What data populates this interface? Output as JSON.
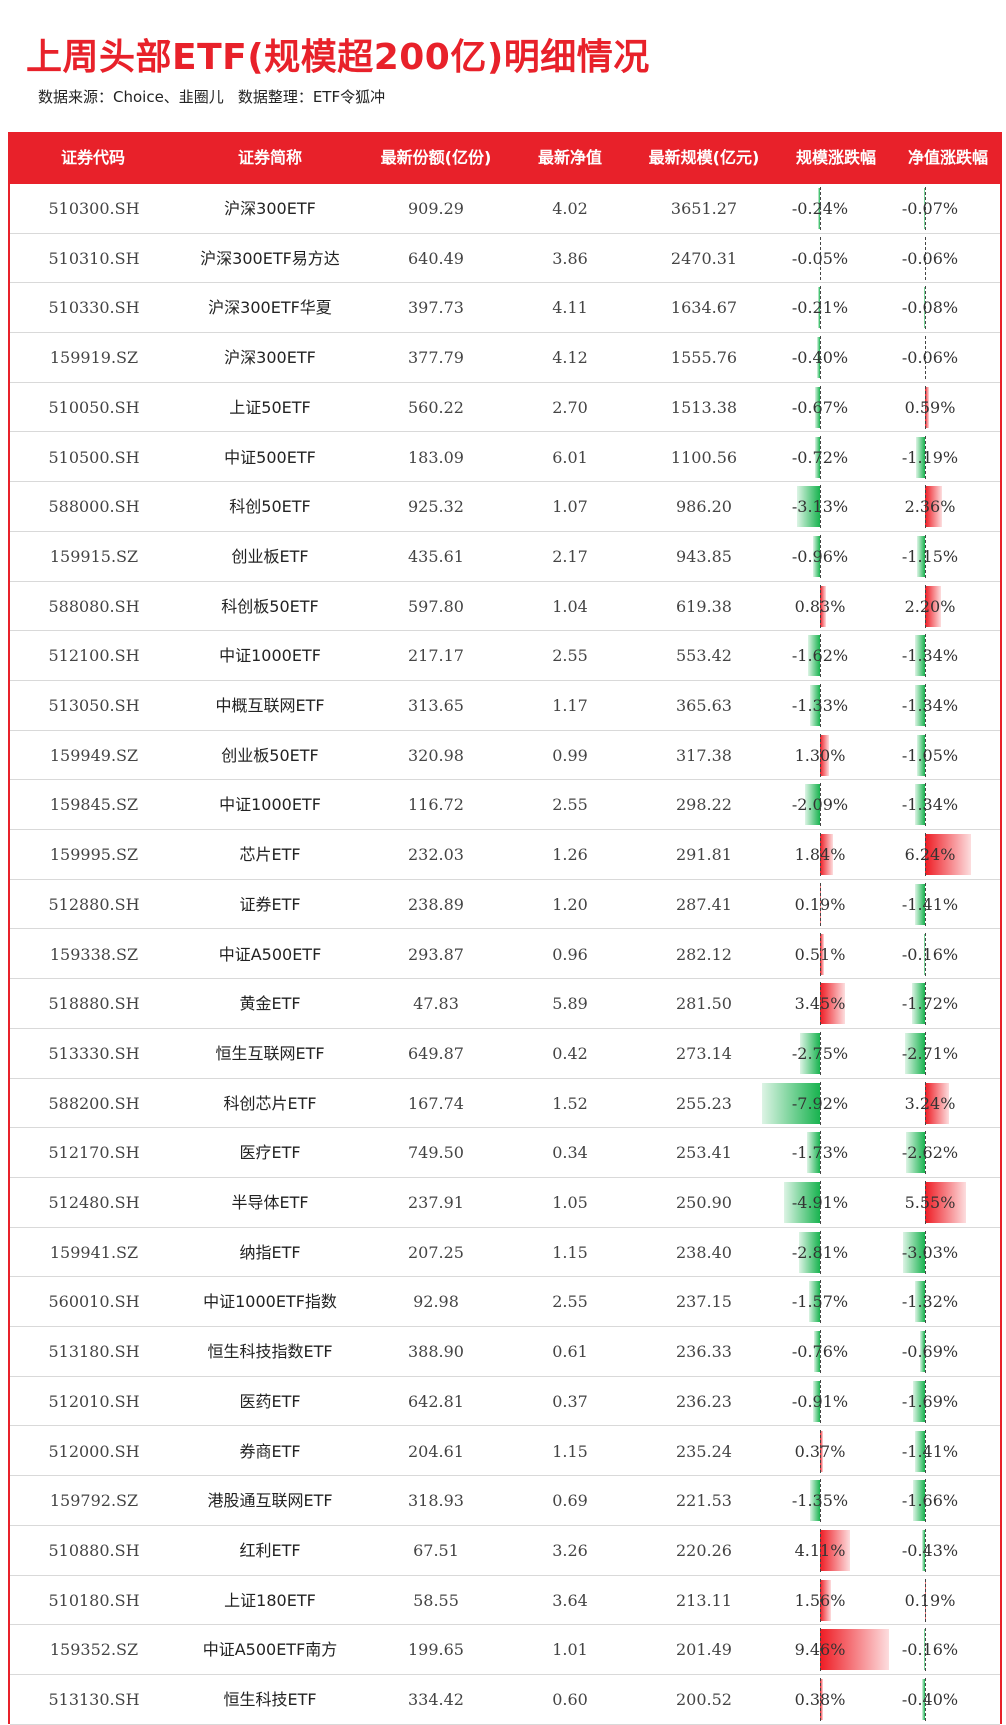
{
  "title": "上周头部ETF(规模超200亿)明细情况",
  "source_line": {
    "source": "数据来源：Choice、韭圈儿",
    "editor": "数据整理：ETF令狐冲"
  },
  "colors": {
    "accent": "#e8212a",
    "up": "#ee1c24",
    "down": "#18b34f"
  },
  "table": {
    "headers": [
      "证券代码",
      "证券简称",
      "最新份额(亿份)",
      "最新净值",
      "最新规模(亿元)",
      "规模涨跌幅",
      "净值涨跌幅"
    ],
    "rows": [
      {
        "code": "510300.SH",
        "name": "沪深300ETF",
        "shares": "909.29",
        "nav": "4.02",
        "scale": "3651.27",
        "scale_chg": "-0.24%",
        "scale_val": -0.24,
        "nav_chg": "-0.07%",
        "nav_val": -0.07
      },
      {
        "code": "510310.SH",
        "name": "沪深300ETF易方达",
        "shares": "640.49",
        "nav": "3.86",
        "scale": "2470.31",
        "scale_chg": "-0.05%",
        "scale_val": -0.05,
        "nav_chg": "-0.06%",
        "nav_val": -0.06
      },
      {
        "code": "510330.SH",
        "name": "沪深300ETF华夏",
        "shares": "397.73",
        "nav": "4.11",
        "scale": "1634.67",
        "scale_chg": "-0.21%",
        "scale_val": -0.21,
        "nav_chg": "-0.08%",
        "nav_val": -0.08
      },
      {
        "code": "159919.SZ",
        "name": "沪深300ETF",
        "shares": "377.79",
        "nav": "4.12",
        "scale": "1555.76",
        "scale_chg": "-0.40%",
        "scale_val": -0.4,
        "nav_chg": "-0.06%",
        "nav_val": -0.06
      },
      {
        "code": "510050.SH",
        "name": "上证50ETF",
        "shares": "560.22",
        "nav": "2.70",
        "scale": "1513.38",
        "scale_chg": "-0.67%",
        "scale_val": -0.67,
        "nav_chg": "0.59%",
        "nav_val": 0.59
      },
      {
        "code": "510500.SH",
        "name": "中证500ETF",
        "shares": "183.09",
        "nav": "6.01",
        "scale": "1100.56",
        "scale_chg": "-0.72%",
        "scale_val": -0.72,
        "nav_chg": "-1.19%",
        "nav_val": -1.19
      },
      {
        "code": "588000.SH",
        "name": "科创50ETF",
        "shares": "925.32",
        "nav": "1.07",
        "scale": "986.20",
        "scale_chg": "-3.13%",
        "scale_val": -3.13,
        "nav_chg": "2.36%",
        "nav_val": 2.36
      },
      {
        "code": "159915.SZ",
        "name": "创业板ETF",
        "shares": "435.61",
        "nav": "2.17",
        "scale": "943.85",
        "scale_chg": "-0.96%",
        "scale_val": -0.96,
        "nav_chg": "-1.15%",
        "nav_val": -1.15
      },
      {
        "code": "588080.SH",
        "name": "科创板50ETF",
        "shares": "597.80",
        "nav": "1.04",
        "scale": "619.38",
        "scale_chg": "0.83%",
        "scale_val": 0.83,
        "nav_chg": "2.20%",
        "nav_val": 2.2
      },
      {
        "code": "512100.SH",
        "name": "中证1000ETF",
        "shares": "217.17",
        "nav": "2.55",
        "scale": "553.42",
        "scale_chg": "-1.62%",
        "scale_val": -1.62,
        "nav_chg": "-1.34%",
        "nav_val": -1.34
      },
      {
        "code": "513050.SH",
        "name": "中概互联网ETF",
        "shares": "313.65",
        "nav": "1.17",
        "scale": "365.63",
        "scale_chg": "-1.33%",
        "scale_val": -1.33,
        "nav_chg": "-1.34%",
        "nav_val": -1.34
      },
      {
        "code": "159949.SZ",
        "name": "创业板50ETF",
        "shares": "320.98",
        "nav": "0.99",
        "scale": "317.38",
        "scale_chg": "1.30%",
        "scale_val": 1.3,
        "nav_chg": "-1.05%",
        "nav_val": -1.05
      },
      {
        "code": "159845.SZ",
        "name": "中证1000ETF",
        "shares": "116.72",
        "nav": "2.55",
        "scale": "298.22",
        "scale_chg": "-2.09%",
        "scale_val": -2.09,
        "nav_chg": "-1.34%",
        "nav_val": -1.34
      },
      {
        "code": "159995.SZ",
        "name": "芯片ETF",
        "shares": "232.03",
        "nav": "1.26",
        "scale": "291.81",
        "scale_chg": "1.84%",
        "scale_val": 1.84,
        "nav_chg": "6.24%",
        "nav_val": 6.24
      },
      {
        "code": "512880.SH",
        "name": "证券ETF",
        "shares": "238.89",
        "nav": "1.20",
        "scale": "287.41",
        "scale_chg": "0.19%",
        "scale_val": 0.19,
        "nav_chg": "-1.41%",
        "nav_val": -1.41
      },
      {
        "code": "159338.SZ",
        "name": "中证A500ETF",
        "shares": "293.87",
        "nav": "0.96",
        "scale": "282.12",
        "scale_chg": "0.51%",
        "scale_val": 0.51,
        "nav_chg": "-0.16%",
        "nav_val": -0.16
      },
      {
        "code": "518880.SH",
        "name": "黄金ETF",
        "shares": "47.83",
        "nav": "5.89",
        "scale": "281.50",
        "scale_chg": "3.45%",
        "scale_val": 3.45,
        "nav_chg": "-1.72%",
        "nav_val": -1.72
      },
      {
        "code": "513330.SH",
        "name": "恒生互联网ETF",
        "shares": "649.87",
        "nav": "0.42",
        "scale": "273.14",
        "scale_chg": "-2.75%",
        "scale_val": -2.75,
        "nav_chg": "-2.71%",
        "nav_val": -2.71
      },
      {
        "code": "588200.SH",
        "name": "科创芯片ETF",
        "shares": "167.74",
        "nav": "1.52",
        "scale": "255.23",
        "scale_chg": "-7.92%",
        "scale_val": -7.92,
        "nav_chg": "3.24%",
        "nav_val": 3.24
      },
      {
        "code": "512170.SH",
        "name": "医疗ETF",
        "shares": "749.50",
        "nav": "0.34",
        "scale": "253.41",
        "scale_chg": "-1.73%",
        "scale_val": -1.73,
        "nav_chg": "-2.62%",
        "nav_val": -2.62
      },
      {
        "code": "512480.SH",
        "name": "半导体ETF",
        "shares": "237.91",
        "nav": "1.05",
        "scale": "250.90",
        "scale_chg": "-4.91%",
        "scale_val": -4.91,
        "nav_chg": "5.55%",
        "nav_val": 5.55
      },
      {
        "code": "159941.SZ",
        "name": "纳指ETF",
        "shares": "207.25",
        "nav": "1.15",
        "scale": "238.40",
        "scale_chg": "-2.81%",
        "scale_val": -2.81,
        "nav_chg": "-3.03%",
        "nav_val": -3.03
      },
      {
        "code": "560010.SH",
        "name": "中证1000ETF指数",
        "shares": "92.98",
        "nav": "2.55",
        "scale": "237.15",
        "scale_chg": "-1.57%",
        "scale_val": -1.57,
        "nav_chg": "-1.32%",
        "nav_val": -1.32
      },
      {
        "code": "513180.SH",
        "name": "恒生科技指数ETF",
        "shares": "388.90",
        "nav": "0.61",
        "scale": "236.33",
        "scale_chg": "-0.76%",
        "scale_val": -0.76,
        "nav_chg": "-0.69%",
        "nav_val": -0.69
      },
      {
        "code": "512010.SH",
        "name": "医药ETF",
        "shares": "642.81",
        "nav": "0.37",
        "scale": "236.23",
        "scale_chg": "-0.91%",
        "scale_val": -0.91,
        "nav_chg": "-1.69%",
        "nav_val": -1.69
      },
      {
        "code": "512000.SH",
        "name": "券商ETF",
        "shares": "204.61",
        "nav": "1.15",
        "scale": "235.24",
        "scale_chg": "0.37%",
        "scale_val": 0.37,
        "nav_chg": "-1.41%",
        "nav_val": -1.41
      },
      {
        "code": "159792.SZ",
        "name": "港股通互联网ETF",
        "shares": "318.93",
        "nav": "0.69",
        "scale": "221.53",
        "scale_chg": "-1.35%",
        "scale_val": -1.35,
        "nav_chg": "-1.66%",
        "nav_val": -1.66
      },
      {
        "code": "510880.SH",
        "name": "红利ETF",
        "shares": "67.51",
        "nav": "3.26",
        "scale": "220.26",
        "scale_chg": "4.11%",
        "scale_val": 4.11,
        "nav_chg": "-0.43%",
        "nav_val": -0.43
      },
      {
        "code": "510180.SH",
        "name": "上证180ETF",
        "shares": "58.55",
        "nav": "3.64",
        "scale": "213.11",
        "scale_chg": "1.56%",
        "scale_val": 1.56,
        "nav_chg": "0.19%",
        "nav_val": 0.19
      },
      {
        "code": "159352.SZ",
        "name": "中证A500ETF南方",
        "shares": "199.65",
        "nav": "1.01",
        "scale": "201.49",
        "scale_chg": "9.46%",
        "scale_val": 9.46,
        "nav_chg": "-0.16%",
        "nav_val": -0.16
      },
      {
        "code": "513130.SH",
        "name": "恒生科技ETF",
        "shares": "334.42",
        "nav": "0.60",
        "scale": "200.52",
        "scale_chg": "0.38%",
        "scale_val": 0.38,
        "nav_chg": "-0.40%",
        "nav_val": -0.4
      }
    ]
  }
}
